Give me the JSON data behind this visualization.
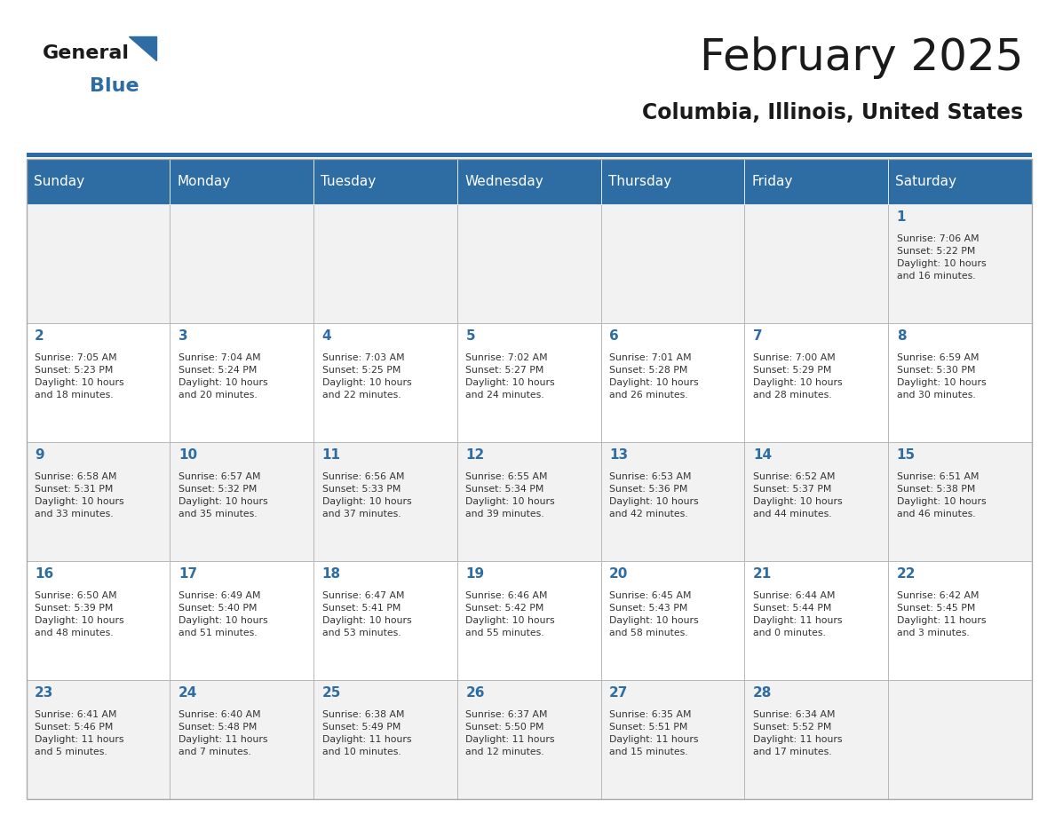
{
  "title": "February 2025",
  "subtitle": "Columbia, Illinois, United States",
  "header_bg": "#2E6DA4",
  "header_text": "#FFFFFF",
  "cell_bg_light": "#F2F2F2",
  "cell_bg_white": "#FFFFFF",
  "day_names": [
    "Sunday",
    "Monday",
    "Tuesday",
    "Wednesday",
    "Thursday",
    "Friday",
    "Saturday"
  ],
  "title_color": "#1a1a1a",
  "subtitle_color": "#1a1a1a",
  "day_number_color": "#2E6DA4",
  "cell_text_color": "#333333",
  "grid_color": "#AAAAAA",
  "logo_general_color": "#1a1a1a",
  "logo_blue_color": "#2E6DA4",
  "weeks": [
    [
      {
        "day": null,
        "info": null
      },
      {
        "day": null,
        "info": null
      },
      {
        "day": null,
        "info": null
      },
      {
        "day": null,
        "info": null
      },
      {
        "day": null,
        "info": null
      },
      {
        "day": null,
        "info": null
      },
      {
        "day": 1,
        "info": "Sunrise: 7:06 AM\nSunset: 5:22 PM\nDaylight: 10 hours\nand 16 minutes."
      }
    ],
    [
      {
        "day": 2,
        "info": "Sunrise: 7:05 AM\nSunset: 5:23 PM\nDaylight: 10 hours\nand 18 minutes."
      },
      {
        "day": 3,
        "info": "Sunrise: 7:04 AM\nSunset: 5:24 PM\nDaylight: 10 hours\nand 20 minutes."
      },
      {
        "day": 4,
        "info": "Sunrise: 7:03 AM\nSunset: 5:25 PM\nDaylight: 10 hours\nand 22 minutes."
      },
      {
        "day": 5,
        "info": "Sunrise: 7:02 AM\nSunset: 5:27 PM\nDaylight: 10 hours\nand 24 minutes."
      },
      {
        "day": 6,
        "info": "Sunrise: 7:01 AM\nSunset: 5:28 PM\nDaylight: 10 hours\nand 26 minutes."
      },
      {
        "day": 7,
        "info": "Sunrise: 7:00 AM\nSunset: 5:29 PM\nDaylight: 10 hours\nand 28 minutes."
      },
      {
        "day": 8,
        "info": "Sunrise: 6:59 AM\nSunset: 5:30 PM\nDaylight: 10 hours\nand 30 minutes."
      }
    ],
    [
      {
        "day": 9,
        "info": "Sunrise: 6:58 AM\nSunset: 5:31 PM\nDaylight: 10 hours\nand 33 minutes."
      },
      {
        "day": 10,
        "info": "Sunrise: 6:57 AM\nSunset: 5:32 PM\nDaylight: 10 hours\nand 35 minutes."
      },
      {
        "day": 11,
        "info": "Sunrise: 6:56 AM\nSunset: 5:33 PM\nDaylight: 10 hours\nand 37 minutes."
      },
      {
        "day": 12,
        "info": "Sunrise: 6:55 AM\nSunset: 5:34 PM\nDaylight: 10 hours\nand 39 minutes."
      },
      {
        "day": 13,
        "info": "Sunrise: 6:53 AM\nSunset: 5:36 PM\nDaylight: 10 hours\nand 42 minutes."
      },
      {
        "day": 14,
        "info": "Sunrise: 6:52 AM\nSunset: 5:37 PM\nDaylight: 10 hours\nand 44 minutes."
      },
      {
        "day": 15,
        "info": "Sunrise: 6:51 AM\nSunset: 5:38 PM\nDaylight: 10 hours\nand 46 minutes."
      }
    ],
    [
      {
        "day": 16,
        "info": "Sunrise: 6:50 AM\nSunset: 5:39 PM\nDaylight: 10 hours\nand 48 minutes."
      },
      {
        "day": 17,
        "info": "Sunrise: 6:49 AM\nSunset: 5:40 PM\nDaylight: 10 hours\nand 51 minutes."
      },
      {
        "day": 18,
        "info": "Sunrise: 6:47 AM\nSunset: 5:41 PM\nDaylight: 10 hours\nand 53 minutes."
      },
      {
        "day": 19,
        "info": "Sunrise: 6:46 AM\nSunset: 5:42 PM\nDaylight: 10 hours\nand 55 minutes."
      },
      {
        "day": 20,
        "info": "Sunrise: 6:45 AM\nSunset: 5:43 PM\nDaylight: 10 hours\nand 58 minutes."
      },
      {
        "day": 21,
        "info": "Sunrise: 6:44 AM\nSunset: 5:44 PM\nDaylight: 11 hours\nand 0 minutes."
      },
      {
        "day": 22,
        "info": "Sunrise: 6:42 AM\nSunset: 5:45 PM\nDaylight: 11 hours\nand 3 minutes."
      }
    ],
    [
      {
        "day": 23,
        "info": "Sunrise: 6:41 AM\nSunset: 5:46 PM\nDaylight: 11 hours\nand 5 minutes."
      },
      {
        "day": 24,
        "info": "Sunrise: 6:40 AM\nSunset: 5:48 PM\nDaylight: 11 hours\nand 7 minutes."
      },
      {
        "day": 25,
        "info": "Sunrise: 6:38 AM\nSunset: 5:49 PM\nDaylight: 11 hours\nand 10 minutes."
      },
      {
        "day": 26,
        "info": "Sunrise: 6:37 AM\nSunset: 5:50 PM\nDaylight: 11 hours\nand 12 minutes."
      },
      {
        "day": 27,
        "info": "Sunrise: 6:35 AM\nSunset: 5:51 PM\nDaylight: 11 hours\nand 15 minutes."
      },
      {
        "day": 28,
        "info": "Sunrise: 6:34 AM\nSunset: 5:52 PM\nDaylight: 11 hours\nand 17 minutes."
      },
      {
        "day": null,
        "info": null
      }
    ]
  ]
}
